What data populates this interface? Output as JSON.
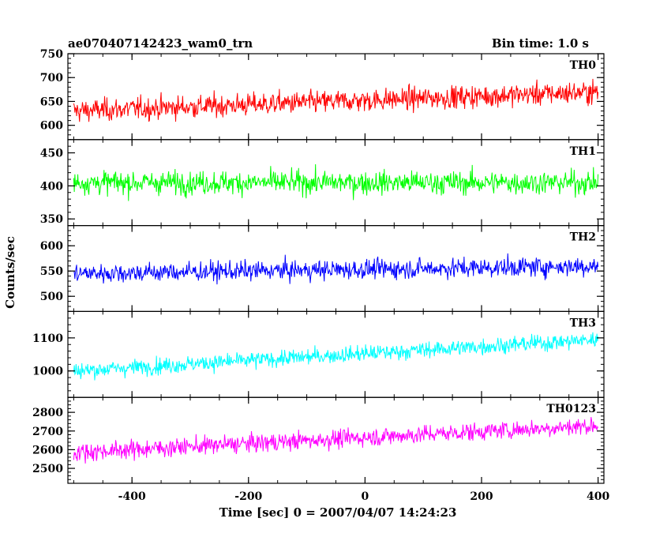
{
  "header": {
    "title": "ae070407142423_wam0_trn",
    "bin_time": "Bin time: 1.0 s"
  },
  "chart_data": {
    "type": "line",
    "xlabel": "Time [sec] 0 = 2007/04/07 14:24:23",
    "ylabel": "Counts/sec",
    "xlim": [
      -510,
      410
    ],
    "xticks": [
      -400,
      -200,
      0,
      200,
      400
    ],
    "grid": false,
    "panels": [
      {
        "name": "TH0",
        "color": "#ff0000",
        "ylim": [
          570,
          750
        ],
        "yticks": [
          600,
          650,
          700,
          750
        ],
        "mean_start": 630,
        "mean_end": 670,
        "noise": 27
      },
      {
        "name": "TH1",
        "color": "#00ff00",
        "ylim": [
          340,
          470
        ],
        "yticks": [
          350,
          400,
          450
        ],
        "mean_start": 405,
        "mean_end": 405,
        "noise": 20
      },
      {
        "name": "TH2",
        "color": "#0000ff",
        "ylim": [
          470,
          640
        ],
        "yticks": [
          500,
          550,
          600
        ],
        "mean_start": 545,
        "mean_end": 560,
        "noise": 22
      },
      {
        "name": "TH3",
        "color": "#00ffff",
        "ylim": [
          920,
          1180
        ],
        "yticks": [
          1000,
          1100
        ],
        "mean_start": 1000,
        "mean_end": 1095,
        "noise": 28
      },
      {
        "name": "TH0123",
        "color": "#ff00ff",
        "ylim": [
          2420,
          2880
        ],
        "yticks": [
          2500,
          2600,
          2700,
          2800
        ],
        "mean_start": 2585,
        "mean_end": 2730,
        "noise": 55
      }
    ],
    "x_start": -500,
    "x_end": 400,
    "bin_seconds": 1.0
  }
}
